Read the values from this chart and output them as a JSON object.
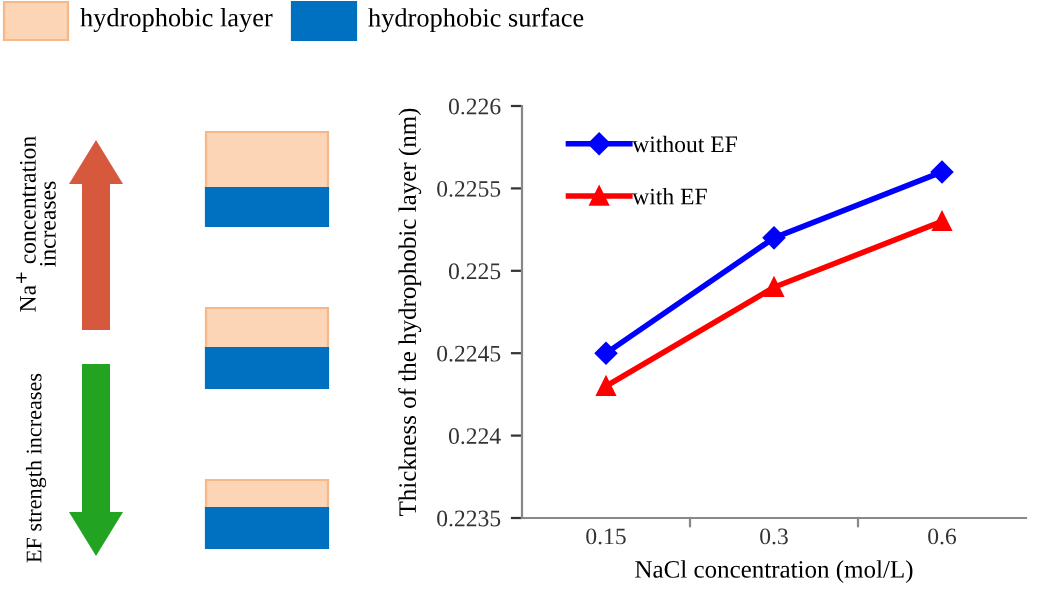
{
  "chart_data": {
    "type": "line",
    "xlabel": "NaCl concentration (mol/L)",
    "ylabel": "Thickness of the hydrophobic layer (nm)",
    "categories": [
      "0.15",
      "0.3",
      "0.6"
    ],
    "series": [
      {
        "name": "without EF",
        "color": "#0000ff",
        "marker": "diamond",
        "values": [
          0.2245,
          0.2252,
          0.2256
        ]
      },
      {
        "name": "with EF",
        "color": "#ff0000",
        "marker": "triangle",
        "values": [
          0.2243,
          0.2249,
          0.2253
        ]
      }
    ],
    "ylim": [
      0.2235,
      0.226
    ],
    "yticks": [
      0.2235,
      0.224,
      0.2245,
      0.225,
      0.2255,
      0.226
    ],
    "grid": false,
    "legend": "top left",
    "line_style": "solid",
    "annotations": [
      "hydrophobic layer",
      "hydrophobic surface",
      "Na$^{+}$ concentration increases",
      "EF strength increases"
    ]
  }
}
